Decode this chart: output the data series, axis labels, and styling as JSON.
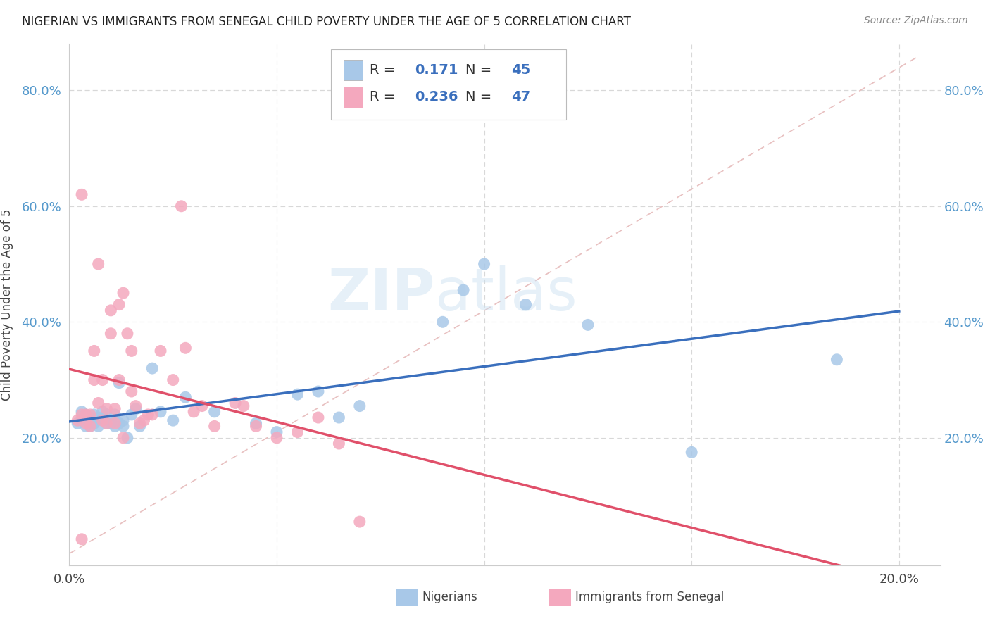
{
  "title": "NIGERIAN VS IMMIGRANTS FROM SENEGAL CHILD POVERTY UNDER THE AGE OF 5 CORRELATION CHART",
  "source": "Source: ZipAtlas.com",
  "ylabel": "Child Poverty Under the Age of 5",
  "xlim": [
    0.0,
    0.21
  ],
  "ylim": [
    -0.02,
    0.88
  ],
  "nigerians_R": 0.171,
  "nigerians_N": 45,
  "senegal_R": 0.236,
  "senegal_N": 47,
  "nigerian_color": "#a8c8e8",
  "senegal_color": "#f4a8be",
  "nigerian_line_color": "#3a6fbd",
  "senegal_line_color": "#e0506a",
  "diag_color": "#e8c0c0",
  "grid_color": "#d8d8d8",
  "background_color": "#ffffff",
  "watermark": "ZIPatlas",
  "nigerian_x": [
    0.002,
    0.003,
    0.003,
    0.004,
    0.004,
    0.005,
    0.005,
    0.006,
    0.006,
    0.007,
    0.007,
    0.008,
    0.008,
    0.009,
    0.009,
    0.01,
    0.01,
    0.011,
    0.011,
    0.012,
    0.012,
    0.013,
    0.013,
    0.014,
    0.015,
    0.016,
    0.017,
    0.02,
    0.022,
    0.025,
    0.028,
    0.035,
    0.045,
    0.05,
    0.055,
    0.06,
    0.065,
    0.07,
    0.09,
    0.095,
    0.1,
    0.11,
    0.125,
    0.15,
    0.185
  ],
  "nigerian_y": [
    0.225,
    0.23,
    0.245,
    0.22,
    0.24,
    0.235,
    0.22,
    0.24,
    0.225,
    0.235,
    0.22,
    0.23,
    0.245,
    0.225,
    0.24,
    0.23,
    0.225,
    0.24,
    0.22,
    0.295,
    0.225,
    0.23,
    0.22,
    0.2,
    0.24,
    0.25,
    0.22,
    0.32,
    0.245,
    0.23,
    0.27,
    0.245,
    0.225,
    0.21,
    0.275,
    0.28,
    0.235,
    0.255,
    0.4,
    0.455,
    0.5,
    0.43,
    0.395,
    0.175,
    0.335
  ],
  "senegal_x": [
    0.002,
    0.003,
    0.003,
    0.004,
    0.004,
    0.005,
    0.005,
    0.006,
    0.006,
    0.007,
    0.007,
    0.008,
    0.008,
    0.009,
    0.009,
    0.01,
    0.01,
    0.011,
    0.011,
    0.012,
    0.012,
    0.013,
    0.013,
    0.014,
    0.015,
    0.015,
    0.016,
    0.017,
    0.018,
    0.019,
    0.02,
    0.022,
    0.025,
    0.027,
    0.028,
    0.03,
    0.032,
    0.035,
    0.04,
    0.042,
    0.045,
    0.05,
    0.055,
    0.06,
    0.065,
    0.07,
    0.003
  ],
  "senegal_y": [
    0.23,
    0.24,
    0.025,
    0.225,
    0.24,
    0.24,
    0.22,
    0.3,
    0.35,
    0.26,
    0.5,
    0.3,
    0.23,
    0.225,
    0.25,
    0.42,
    0.38,
    0.225,
    0.25,
    0.3,
    0.43,
    0.2,
    0.45,
    0.38,
    0.28,
    0.35,
    0.255,
    0.225,
    0.23,
    0.24,
    0.24,
    0.35,
    0.3,
    0.6,
    0.355,
    0.245,
    0.255,
    0.22,
    0.26,
    0.255,
    0.22,
    0.2,
    0.21,
    0.235,
    0.19,
    0.055,
    0.62
  ]
}
